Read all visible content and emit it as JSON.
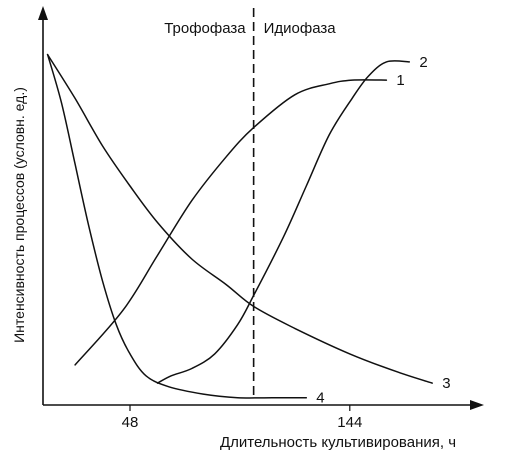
{
  "chart_data": {
    "type": "line",
    "xlabel": "Длительность культивирования, ч",
    "ylabel": "Интенсивность процессов (условн. ед.)",
    "x_ticks": [
      48,
      144
    ],
    "xlim": [
      10,
      200
    ],
    "ylim": [
      0,
      100
    ],
    "grid": false,
    "legend": "labels at line ends",
    "phase_divider_x": 102,
    "phases": [
      {
        "label": "Трофофаза",
        "side": "left"
      },
      {
        "label": "Идиофаза",
        "side": "right"
      }
    ],
    "series": [
      {
        "name": "1",
        "x": [
          24,
          45,
          60,
          75,
          90,
          102,
          120,
          135,
          145,
          160
        ],
        "y": [
          11,
          26,
          41,
          56,
          68,
          76,
          85,
          88,
          89,
          89
        ]
      },
      {
        "name": "2",
        "x": [
          60,
          66,
          75,
          85,
          95,
          102,
          115,
          125,
          135,
          145,
          152,
          160,
          170
        ],
        "y": [
          6,
          8,
          10,
          14,
          22,
          30,
          46,
          60,
          74,
          84,
          90,
          94,
          94
        ]
      },
      {
        "name": "3",
        "x": [
          12,
          24,
          36,
          48,
          60,
          75,
          90,
          102,
          120,
          144,
          165,
          180
        ],
        "y": [
          96,
          84,
          71,
          60,
          50,
          40,
          33,
          27,
          21,
          14,
          9,
          6
        ]
      },
      {
        "name": "4",
        "x": [
          12,
          18,
          24,
          30,
          36,
          42,
          48,
          55,
          65,
          80,
          95,
          110,
          125
        ],
        "y": [
          96,
          83,
          66,
          49,
          34,
          22,
          14,
          8,
          5,
          3,
          2,
          2,
          2
        ]
      }
    ]
  }
}
